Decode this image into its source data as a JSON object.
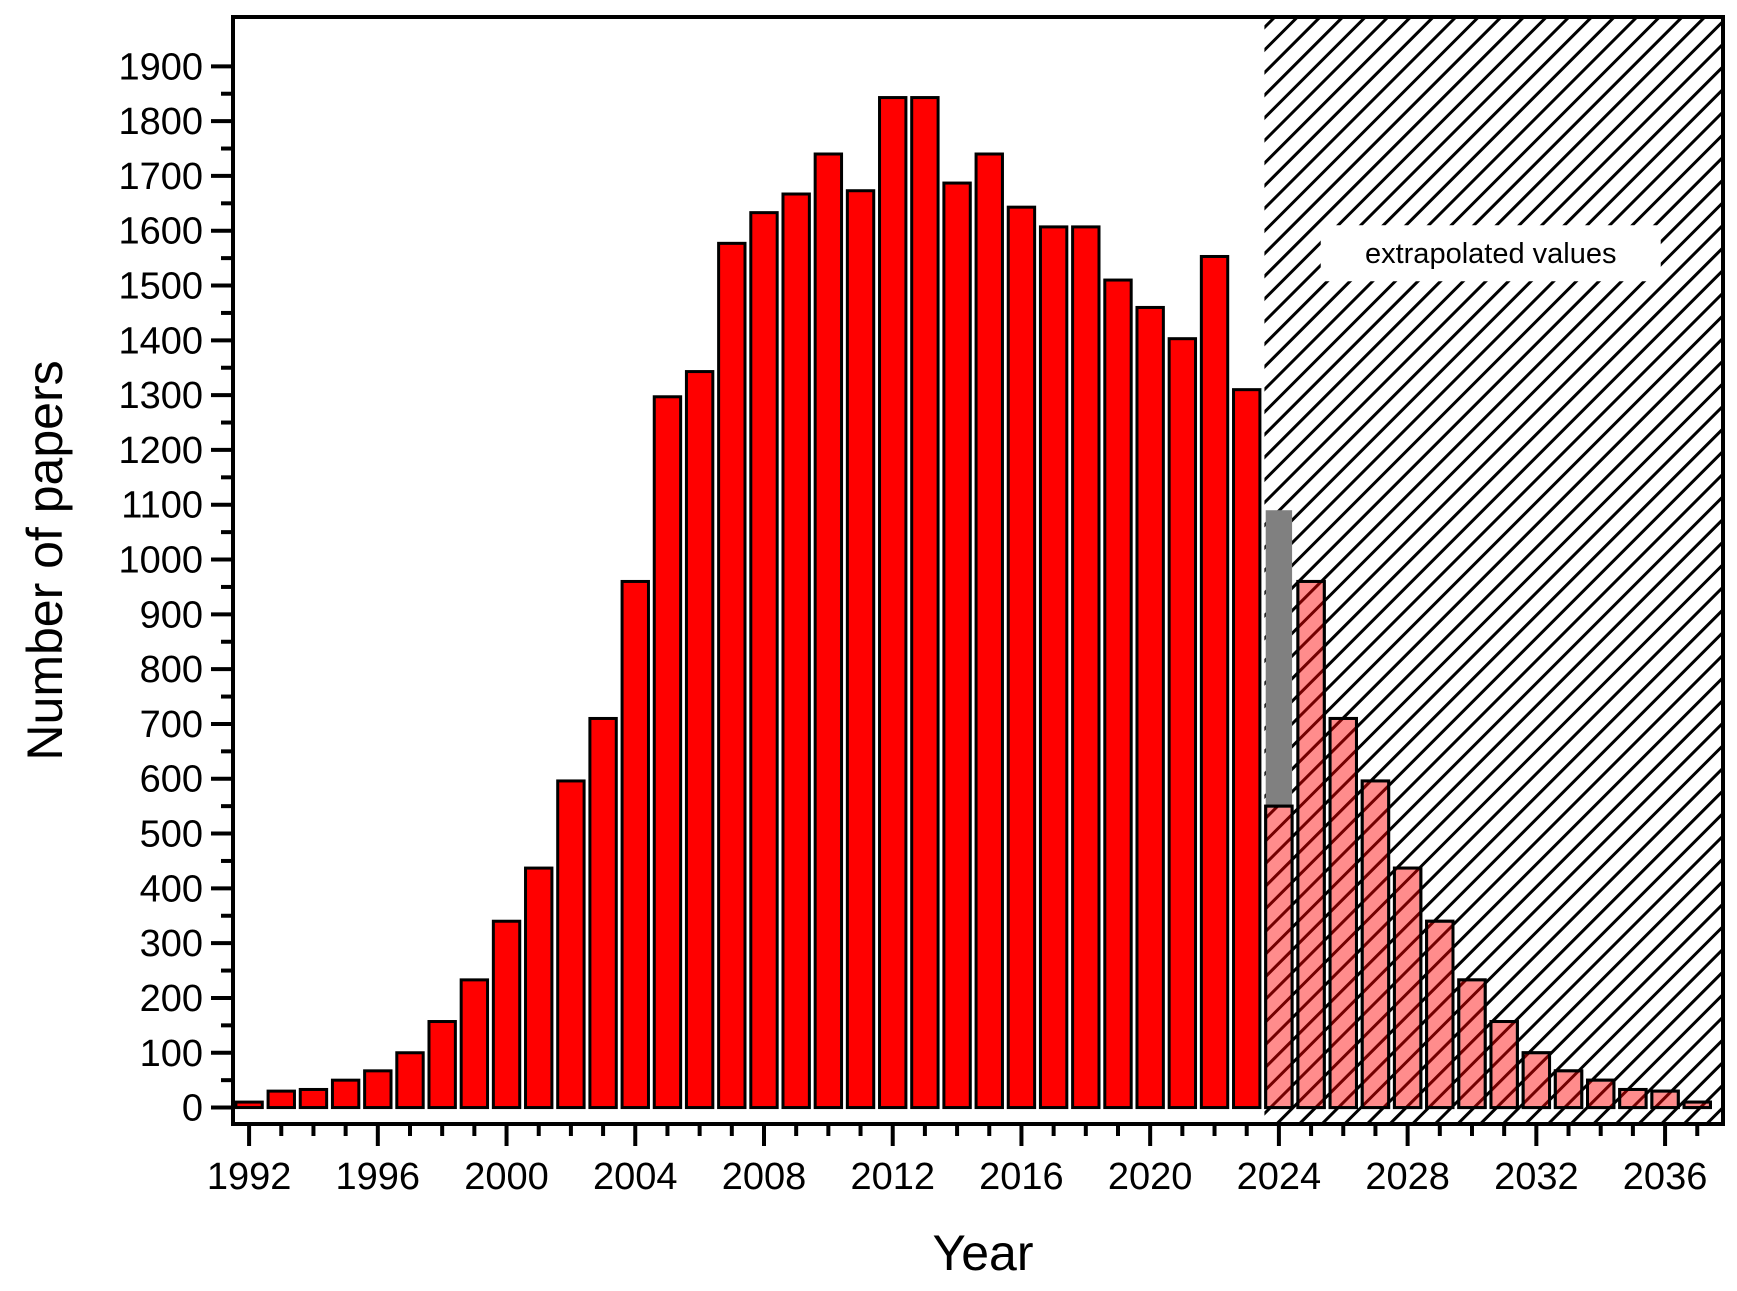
{
  "chart_data": {
    "type": "bar",
    "title": "",
    "xlabel": "Year",
    "ylabel": "Number of papers",
    "xlim": [
      1991.5,
      2037.8
    ],
    "ylim": [
      -30,
      1990
    ],
    "x_ticks_labeled": [
      1992,
      1996,
      2000,
      2004,
      2008,
      2012,
      2016,
      2020,
      2024,
      2028,
      2032,
      2036
    ],
    "y_ticks_labeled": [
      0,
      100,
      200,
      300,
      400,
      500,
      600,
      700,
      800,
      900,
      1000,
      1100,
      1200,
      1300,
      1400,
      1500,
      1600,
      1700,
      1800,
      1900
    ],
    "grid": false,
    "legend": "none",
    "colors": {
      "bar": "#ff0000",
      "bar_stroke": "#000000",
      "uncertainty_bar": "#808080",
      "hatch": "#000000"
    },
    "categories": [
      1992,
      1993,
      1994,
      1995,
      1996,
      1997,
      1998,
      1999,
      2000,
      2001,
      2002,
      2003,
      2004,
      2005,
      2006,
      2007,
      2008,
      2009,
      2010,
      2011,
      2012,
      2013,
      2014,
      2015,
      2016,
      2017,
      2018,
      2019,
      2020,
      2021,
      2022,
      2023,
      2024,
      2025,
      2026,
      2027,
      2028,
      2029,
      2030,
      2031,
      2032,
      2033,
      2034,
      2035,
      2036,
      2037
    ],
    "values": [
      10,
      30,
      33,
      50,
      67,
      100,
      157,
      233,
      340,
      437,
      596,
      710,
      960,
      1297,
      1343,
      1577,
      1633,
      1667,
      1740,
      1673,
      1843,
      1843,
      1687,
      1740,
      1643,
      1607,
      1607,
      1510,
      1460,
      1403,
      1553,
      1310,
      550,
      960,
      710,
      596,
      437,
      340,
      233,
      157,
      100,
      67,
      50,
      33,
      30,
      10
    ],
    "extrapolated_from": 2024,
    "uncertainty": {
      "x": 2024,
      "low": 550,
      "high": 1090
    },
    "annotations": [
      {
        "text": "extrapolated values"
      }
    ]
  }
}
